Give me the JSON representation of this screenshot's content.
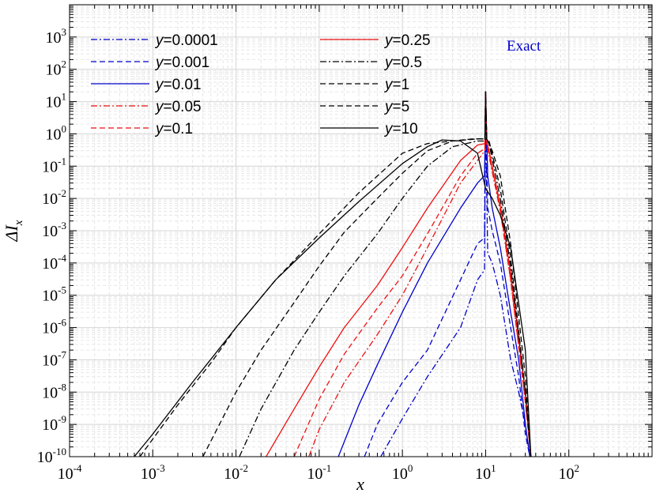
{
  "chart_data": {
    "type": "line",
    "xscale": "log",
    "yscale": "log",
    "xlim": [
      0.0001,
      1000
    ],
    "ylim": [
      1e-10,
      10000
    ],
    "xlabel": "x",
    "ylabel": "ΔI",
    "ylabel_sub": "x",
    "grid": true,
    "legend_placement": "top (two columns)",
    "x_ticks": [
      {
        "base": "10",
        "exp": "-4"
      },
      {
        "base": "10",
        "exp": "-3"
      },
      {
        "base": "10",
        "exp": "-2"
      },
      {
        "base": "10",
        "exp": "-1"
      },
      {
        "base": "10",
        "exp": "0"
      },
      {
        "base": "10",
        "exp": "1"
      },
      {
        "base": "10",
        "exp": "2"
      }
    ],
    "y_ticks": [
      {
        "base": "10",
        "exp": "-10"
      },
      {
        "base": "10",
        "exp": "-9"
      },
      {
        "base": "10",
        "exp": "-8"
      },
      {
        "base": "10",
        "exp": "-7"
      },
      {
        "base": "10",
        "exp": "-6"
      },
      {
        "base": "10",
        "exp": "-5"
      },
      {
        "base": "10",
        "exp": "-4"
      },
      {
        "base": "10",
        "exp": "-3"
      },
      {
        "base": "10",
        "exp": "-2"
      },
      {
        "base": "10",
        "exp": "-1"
      },
      {
        "base": "10",
        "exp": "0"
      },
      {
        "base": "10",
        "exp": "1"
      },
      {
        "base": "10",
        "exp": "2"
      },
      {
        "base": "10",
        "exp": "3"
      }
    ],
    "annotation": {
      "text": "Exact",
      "color": "#0000cc"
    },
    "series": [
      {
        "name": "y=0.0001",
        "label_prefix": "y",
        "label_value": "=0.0001",
        "color": "#0000cc",
        "dash": "dashdot",
        "x": [
          0.55,
          1,
          2,
          5,
          8,
          9.7,
          9.9,
          10,
          10.2,
          10.6,
          12,
          15,
          20,
          25,
          30,
          34
        ],
        "y": [
          1e-10,
          1.5e-09,
          3e-08,
          1e-06,
          3e-05,
          6e-05,
          1,
          20,
          0.1,
          0.0002,
          0.0001,
          1e-05,
          1e-07,
          1e-08,
          1e-09,
          1e-10
        ]
      },
      {
        "name": "y=0.001",
        "label_prefix": "y",
        "label_value": "=0.001",
        "color": "#0000cc",
        "dash": "dash",
        "x": [
          0.35,
          0.5,
          1,
          2,
          5,
          8,
          9.7,
          9.9,
          10,
          10.2,
          10.6,
          12,
          15,
          20,
          25,
          30,
          34
        ],
        "y": [
          1e-10,
          1e-09,
          2e-08,
          2e-07,
          3e-05,
          0.0004,
          0.0006,
          1,
          20,
          0.5,
          0.005,
          0.001,
          0.0001,
          1e-06,
          3e-08,
          5e-10,
          1e-10
        ]
      },
      {
        "name": "y=0.01",
        "label_prefix": "y",
        "label_value": "=0.01",
        "color": "#0000cc",
        "dash": "solid",
        "x": [
          0.17,
          0.3,
          0.5,
          1,
          2,
          5,
          8,
          9.7,
          9.9,
          10,
          10.2,
          10.6,
          12,
          15,
          20,
          25,
          30,
          34
        ],
        "y": [
          1e-10,
          4e-09,
          7e-08,
          3e-06,
          0.0001,
          0.005,
          0.03,
          0.05,
          1,
          20,
          2,
          0.05,
          0.005,
          0.0003,
          3e-06,
          1e-07,
          1e-09,
          1e-10
        ]
      },
      {
        "name": "y=0.05",
        "label_prefix": "y",
        "label_value": "=0.05",
        "color": "#ee1111",
        "dash": "dashdot",
        "x": [
          0.075,
          0.1,
          0.2,
          0.5,
          1,
          2,
          5,
          8,
          9.8,
          10,
          10.3,
          11,
          15,
          20,
          30,
          35
        ],
        "y": [
          1e-10,
          7e-10,
          2e-08,
          6e-07,
          1e-05,
          0.0003,
          0.03,
          0.15,
          0.3,
          20,
          0.5,
          0.2,
          0.004,
          3e-05,
          5e-09,
          1e-10
        ]
      },
      {
        "name": "y=0.1",
        "label_prefix": "y",
        "label_value": "=0.1",
        "color": "#ee1111",
        "dash": "dash",
        "x": [
          0.05,
          0.1,
          0.2,
          0.5,
          1,
          2,
          5,
          8,
          9.8,
          10,
          10.3,
          11,
          15,
          20,
          30,
          35
        ],
        "y": [
          1e-10,
          6e-09,
          1.5e-07,
          4e-06,
          4e-05,
          0.0008,
          0.05,
          0.25,
          0.35,
          20,
          0.5,
          0.25,
          0.005,
          3e-05,
          5e-09,
          1e-10
        ]
      },
      {
        "name": "y=0.25",
        "label_prefix": "y",
        "label_value": "=0.25",
        "color": "#ee1111",
        "dash": "solid",
        "x": [
          0.023,
          0.05,
          0.1,
          0.2,
          0.5,
          1,
          2,
          5,
          8,
          9.8,
          10,
          10.3,
          11,
          15,
          20,
          30,
          35
        ],
        "y": [
          1e-10,
          3e-09,
          6e-08,
          1e-06,
          2e-05,
          0.0003,
          0.005,
          0.15,
          0.45,
          0.5,
          20,
          0.6,
          0.3,
          0.006,
          5e-05,
          1e-08,
          1e-10
        ]
      },
      {
        "name": "y=0.5",
        "label_prefix": "y",
        "label_value": "=0.5",
        "color": "#000000",
        "dash": "dashdot",
        "x": [
          0.011,
          0.02,
          0.05,
          0.1,
          0.2,
          0.5,
          1,
          2,
          4,
          8,
          9.8,
          10,
          10.3,
          11,
          15,
          20,
          30,
          35
        ],
        "y": [
          1e-10,
          3e-09,
          2e-07,
          3e-06,
          4e-05,
          0.0008,
          0.01,
          0.1,
          0.4,
          0.6,
          0.6,
          20,
          0.7,
          0.5,
          0.01,
          8e-05,
          1e-08,
          1e-10
        ]
      },
      {
        "name": "y=1",
        "label_prefix": "y",
        "label_value": "=1",
        "color": "#000000",
        "dash": "dash",
        "x": [
          0.004,
          0.01,
          0.02,
          0.05,
          0.1,
          0.2,
          0.5,
          1,
          2,
          4,
          8,
          9.8,
          10,
          10.3,
          11,
          15,
          20,
          30,
          35
        ],
        "y": [
          1e-10,
          1e-08,
          2e-07,
          6e-06,
          8e-05,
          0.0009,
          0.01,
          0.06,
          0.3,
          0.6,
          0.7,
          0.7,
          20,
          0.7,
          0.6,
          0.02,
          0.00015,
          1e-08,
          1e-10
        ]
      },
      {
        "name": "y=5",
        "label_prefix": "y",
        "label_value": "=5",
        "color": "#000000",
        "dash": "dash",
        "x": [
          0.0007,
          0.002,
          0.005,
          0.01,
          0.03,
          0.1,
          0.3,
          1,
          2,
          4,
          7,
          9.8,
          10,
          10.3,
          12,
          15,
          20,
          30,
          35
        ],
        "y": [
          1e-10,
          4e-09,
          8e-08,
          1e-06,
          3e-05,
          0.0008,
          0.015,
          0.25,
          0.5,
          0.6,
          0.7,
          0.7,
          20,
          0.7,
          0.3,
          0.05,
          0.0004,
          3e-08,
          1e-10
        ]
      },
      {
        "name": "y=10",
        "label_prefix": "y",
        "label_value": "=10",
        "color": "#000000",
        "dash": "solid",
        "x": [
          0.0006,
          0.001,
          0.003,
          0.01,
          0.03,
          0.1,
          0.3,
          1,
          2,
          3,
          5,
          8,
          10,
          12,
          15,
          20,
          30,
          35
        ],
        "y": [
          1e-10,
          5e-10,
          2e-08,
          1e-06,
          3e-05,
          0.0006,
          0.008,
          0.12,
          0.4,
          0.65,
          0.6,
          0.25,
          0.02,
          0.01,
          0.003,
          0.0003,
          2e-07,
          1e-10
        ]
      }
    ]
  }
}
